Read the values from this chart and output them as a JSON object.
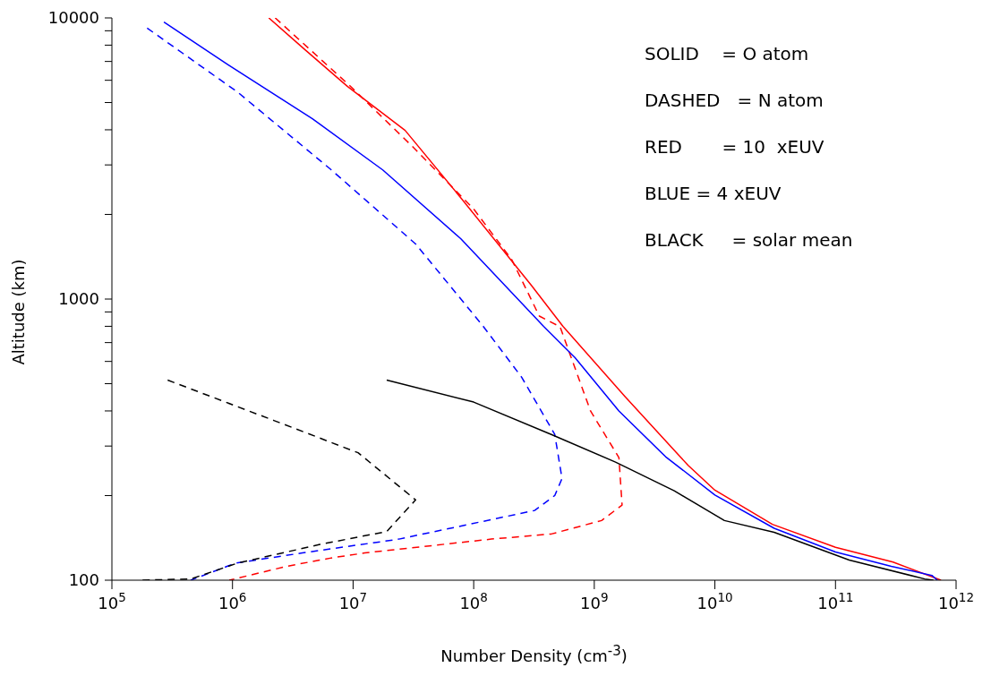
{
  "chart_data": {
    "type": "line",
    "xlabel": "Number Density (cm$^{-3}$)",
    "ylabel": "Altitude (km)",
    "log": "xy",
    "xlim": [
      100000,
      1000000000000
    ],
    "ylim": [
      100,
      10000
    ],
    "xticks": [
      {
        "value": 100000,
        "label": "10$^{5}$"
      },
      {
        "value": 1000000,
        "label": "10$^{6}$"
      },
      {
        "value": 10000000,
        "label": "10$^{7}$"
      },
      {
        "value": 100000000,
        "label": "10$^{8}$"
      },
      {
        "value": 1000000000,
        "label": "10$^{9}$"
      },
      {
        "value": 10000000000,
        "label": "10$^{10}$"
      },
      {
        "value": 100000000000,
        "label": "10$^{11}$"
      },
      {
        "value": 1000000000000,
        "label": "10$^{12}$"
      }
    ],
    "yticks": [
      100,
      {
        "value": 200,
        "label": null
      },
      {
        "value": 300,
        "label": null
      },
      {
        "value": 400,
        "label": null
      },
      {
        "value": 500,
        "label": null
      },
      {
        "value": 600,
        "label": null
      },
      {
        "value": 700,
        "label": null
      },
      {
        "value": 800,
        "label": null
      },
      {
        "value": 900,
        "label": null
      },
      1000,
      {
        "value": 2000,
        "label": null
      },
      {
        "value": 3000,
        "label": null
      },
      {
        "value": 4000,
        "label": null
      },
      {
        "value": 5000,
        "label": null
      },
      {
        "value": 6000,
        "label": null
      },
      {
        "value": 7000,
        "label": null
      },
      {
        "value": 8000,
        "label": null
      },
      {
        "value": 9000,
        "label": null
      },
      10000
    ],
    "annotations": [
      "SOLID    = O atom",
      "DASHED   = N atom",
      "RED       = 10  xEUV",
      "BLUE = 4 xEUV",
      "BLACK     = solar mean"
    ],
    "series": [
      {
        "color": "#ff0000",
        "line_style": "solid",
        "x": [
          2000000,
          4000000,
          9000000,
          27000000,
          81000000,
          300000000,
          550000000,
          1800000000,
          6000000000,
          10000000000,
          30000000000,
          100000000000,
          300000000000,
          750000000000
        ],
        "values": [
          10000,
          7700,
          5700,
          3980,
          2250,
          1120,
          800,
          450,
          256,
          209,
          158,
          131,
          116,
          100
        ]
      },
      {
        "color": "#ff0000",
        "line_style": "dashed",
        "x": [
          2260000,
          9300000,
          31000000,
          100000000,
          207000000,
          350000000,
          520000000,
          930000000,
          1600000000,
          1700000000,
          1150000000,
          440000000,
          140000000,
          12500000,
          6600000,
          2800000,
          940000
        ],
        "values": [
          10000,
          5760,
          3490,
          2090,
          1380,
          870,
          797,
          400,
          273,
          185,
          163,
          146,
          140,
          125,
          120,
          112,
          100
        ]
      },
      {
        "color": "#0000ff",
        "line_style": "solid",
        "x": [
          270000,
          920000,
          4600000,
          17600000,
          78000000,
          380000000,
          690000000,
          1600000000,
          3900000000,
          10000000000,
          31000000000,
          100000000000,
          290000000000,
          630000000000,
          700000000000
        ],
        "values": [
          9670,
          6810,
          4380,
          2880,
          1640,
          800,
          620,
          400,
          275,
          201,
          153,
          126,
          112,
          104,
          100
        ]
      },
      {
        "color": "#0000ff",
        "line_style": "dashed",
        "x": [
          196000,
          1100000,
          6600000,
          33000000,
          120000000,
          250000000,
          470000000,
          540000000,
          470000000,
          320000000,
          24000000,
          3800000,
          1060000,
          450000
        ],
        "values": [
          9200,
          5450,
          2880,
          1570,
          800,
          527,
          330,
          230,
          200,
          177,
          140,
          125,
          115,
          100
        ]
      },
      {
        "color": "#000000",
        "line_style": "solid",
        "x": [
          19000000,
          100000000,
          440000000,
          1500000000,
          4600000000,
          12000000000,
          31000000000,
          130000000000,
          550000000000,
          650000000000
        ],
        "values": [
          515,
          430,
          330,
          263,
          208,
          163,
          148,
          118,
          101,
          100
        ]
      },
      {
        "color": "#000000",
        "line_style": "dashed",
        "x": [
          290000,
          2200000,
          11000000,
          33000000,
          19000000,
          5300000,
          1100000,
          450000,
          170000
        ],
        "values": [
          515,
          370,
          284,
          193,
          149,
          134,
          115,
          101,
          100
        ]
      }
    ]
  }
}
